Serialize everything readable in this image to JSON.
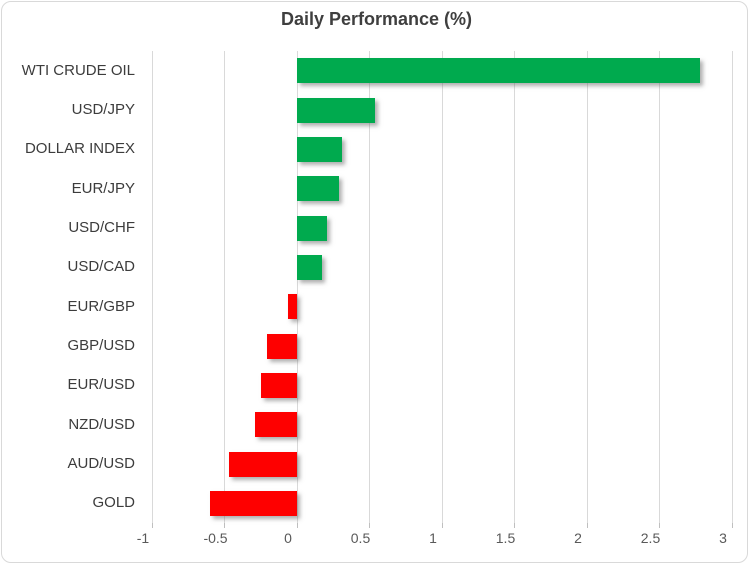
{
  "chart_data": {
    "type": "bar",
    "orientation": "horizontal",
    "title": "Daily Performance (%)",
    "categories": [
      "WTI CRUDE OIL",
      "USD/JPY",
      "DOLLAR INDEX",
      "EUR/JPY",
      "USD/CHF",
      "USD/CAD",
      "EUR/GBP",
      "GBP/USD",
      "EUR/USD",
      "NZD/USD",
      "AUD/USD",
      "GOLD"
    ],
    "values": [
      2.78,
      0.54,
      0.31,
      0.29,
      0.21,
      0.17,
      -0.06,
      -0.21,
      -0.25,
      -0.29,
      -0.47,
      -0.6
    ],
    "xlim": [
      -1,
      3
    ],
    "xticks": [
      -1,
      -0.5,
      0,
      0.5,
      1,
      1.5,
      2,
      2.5,
      3
    ],
    "xtick_labels": [
      "-1",
      "-0.5",
      "0",
      "0.5",
      "1",
      "1.5",
      "2",
      "2.5",
      "3"
    ],
    "grid": "vertical-only",
    "legend": "none",
    "colors": {
      "positive": "#00aa4e",
      "negative": "#fe0000",
      "gridline": "#d9d9d9",
      "border": "#d9d9d9",
      "tick": "#bfbfbf",
      "title_text": "#3f3f3f",
      "axis_text": "#595959",
      "category_text": "#3c3c3c"
    }
  }
}
